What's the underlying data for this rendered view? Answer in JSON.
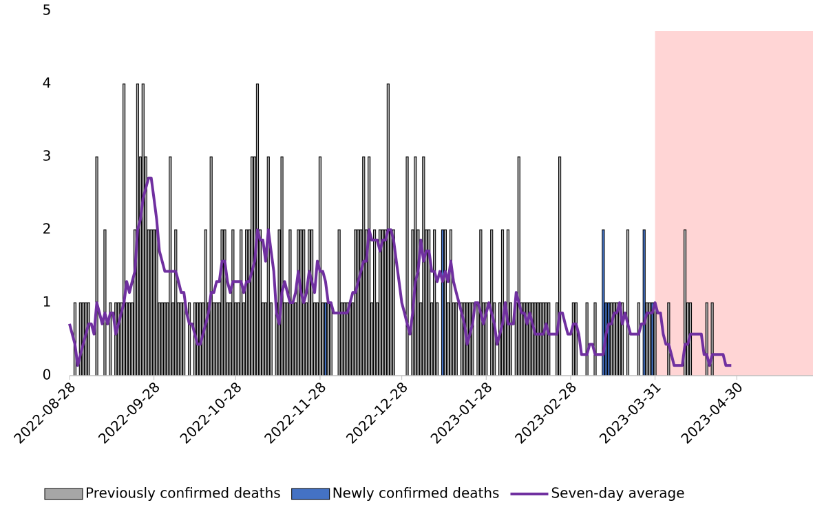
{
  "chart_data": {
    "type": "bar-line",
    "x": [
      "2022-08-28",
      "2022-08-29",
      "2022-08-30",
      "2022-08-31",
      "2022-09-01",
      "2022-09-02",
      "2022-09-03",
      "2022-09-04",
      "2022-09-05",
      "2022-09-06",
      "2022-09-07",
      "2022-09-08",
      "2022-09-09",
      "2022-09-10",
      "2022-09-11",
      "2022-09-12",
      "2022-09-13",
      "2022-09-14",
      "2022-09-15",
      "2022-09-16",
      "2022-09-17",
      "2022-09-18",
      "2022-09-19",
      "2022-09-20",
      "2022-09-21",
      "2022-09-22",
      "2022-09-23",
      "2022-09-24",
      "2022-09-25",
      "2022-09-26",
      "2022-09-27",
      "2022-09-28",
      "2022-09-29",
      "2022-09-30",
      "2022-10-01",
      "2022-10-02",
      "2022-10-03",
      "2022-10-04",
      "2022-10-05",
      "2022-10-06",
      "2022-10-07",
      "2022-10-08",
      "2022-10-09",
      "2022-10-10",
      "2022-10-11",
      "2022-10-12",
      "2022-10-13",
      "2022-10-14",
      "2022-10-15",
      "2022-10-16",
      "2022-10-17",
      "2022-10-18",
      "2022-10-19",
      "2022-10-20",
      "2022-10-21",
      "2022-10-22",
      "2022-10-23",
      "2022-10-24",
      "2022-10-25",
      "2022-10-26",
      "2022-10-27",
      "2022-10-28",
      "2022-10-29",
      "2022-10-30",
      "2022-10-31",
      "2022-11-01",
      "2022-11-02",
      "2022-11-03",
      "2022-11-04",
      "2022-11-05",
      "2022-11-06",
      "2022-11-07",
      "2022-11-08",
      "2022-11-09",
      "2022-11-10",
      "2022-11-11",
      "2022-11-12",
      "2022-11-13",
      "2022-11-14",
      "2022-11-15",
      "2022-11-16",
      "2022-11-17",
      "2022-11-18",
      "2022-11-19",
      "2022-11-20",
      "2022-11-21",
      "2022-11-22",
      "2022-11-23",
      "2022-11-24",
      "2022-11-25",
      "2022-11-26",
      "2022-11-27",
      "2022-11-28",
      "2022-11-29",
      "2022-11-30",
      "2022-12-01",
      "2022-12-02",
      "2022-12-03",
      "2022-12-04",
      "2022-12-05",
      "2022-12-06",
      "2022-12-07",
      "2022-12-08",
      "2022-12-09",
      "2022-12-10",
      "2022-12-11",
      "2022-12-12",
      "2022-12-13",
      "2022-12-14",
      "2022-12-15",
      "2022-12-16",
      "2022-12-17",
      "2022-12-18",
      "2022-12-19",
      "2022-12-20",
      "2022-12-21",
      "2022-12-22",
      "2022-12-23",
      "2022-12-24",
      "2022-12-25",
      "2022-12-26",
      "2022-12-27",
      "2022-12-28",
      "2022-12-29",
      "2022-12-30",
      "2022-12-31",
      "2023-01-01",
      "2023-01-02",
      "2023-01-03",
      "2023-01-04",
      "2023-01-05",
      "2023-01-06",
      "2023-01-07",
      "2023-01-08",
      "2023-01-09",
      "2023-01-10",
      "2023-01-11",
      "2023-01-12",
      "2023-01-13",
      "2023-01-14",
      "2023-01-15",
      "2023-01-16",
      "2023-01-17",
      "2023-01-18",
      "2023-01-19",
      "2023-01-20",
      "2023-01-21",
      "2023-01-22",
      "2023-01-23",
      "2023-01-24",
      "2023-01-25",
      "2023-01-26",
      "2023-01-27",
      "2023-01-28",
      "2023-01-29",
      "2023-01-30",
      "2023-01-31",
      "2023-02-01",
      "2023-02-02",
      "2023-02-03",
      "2023-02-04",
      "2023-02-05",
      "2023-02-06",
      "2023-02-07",
      "2023-02-08",
      "2023-02-09",
      "2023-02-10",
      "2023-02-11",
      "2023-02-12",
      "2023-02-13",
      "2023-02-14",
      "2023-02-15",
      "2023-02-16",
      "2023-02-17",
      "2023-02-18",
      "2023-02-19",
      "2023-02-20",
      "2023-02-21",
      "2023-02-22",
      "2023-02-23",
      "2023-02-24",
      "2023-02-25",
      "2023-02-26",
      "2023-02-27",
      "2023-02-28",
      "2023-03-01",
      "2023-03-02",
      "2023-03-03",
      "2023-03-04",
      "2023-03-05",
      "2023-03-06",
      "2023-03-07",
      "2023-03-08",
      "2023-03-09",
      "2023-03-10",
      "2023-03-11",
      "2023-03-12",
      "2023-03-13",
      "2023-03-14",
      "2023-03-15",
      "2023-03-16",
      "2023-03-17",
      "2023-03-18",
      "2023-03-19",
      "2023-03-20",
      "2023-03-21",
      "2023-03-22",
      "2023-03-23",
      "2023-03-24",
      "2023-03-25",
      "2023-03-26",
      "2023-03-27",
      "2023-03-28",
      "2023-03-29",
      "2023-03-30",
      "2023-03-31",
      "2023-04-01",
      "2023-04-02",
      "2023-04-03",
      "2023-04-04",
      "2023-04-05",
      "2023-04-06",
      "2023-04-07",
      "2023-04-08",
      "2023-04-09",
      "2023-04-10",
      "2023-04-11",
      "2023-04-12",
      "2023-04-13",
      "2023-04-14",
      "2023-04-15",
      "2023-04-16",
      "2023-04-17",
      "2023-04-18",
      "2023-04-19",
      "2023-04-20",
      "2023-04-21",
      "2023-04-22",
      "2023-04-23",
      "2023-04-24",
      "2023-04-25",
      "2023-04-26",
      "2023-04-27",
      "2023-04-28"
    ],
    "series": [
      {
        "name": "Previously confirmed deaths",
        "kind": "bar",
        "color": "#a6a6a6",
        "values": [
          0,
          0,
          1,
          0,
          1,
          1,
          1,
          1,
          0,
          0,
          3,
          0,
          0,
          2,
          0,
          1,
          0,
          1,
          1,
          1,
          4,
          1,
          1,
          1,
          2,
          4,
          3,
          4,
          3,
          2,
          2,
          2,
          2,
          1,
          1,
          1,
          1,
          3,
          1,
          2,
          1,
          1,
          1,
          0,
          1,
          0,
          1,
          1,
          1,
          1,
          2,
          1,
          3,
          1,
          1,
          1,
          2,
          2,
          1,
          1,
          2,
          1,
          1,
          2,
          1,
          2,
          2,
          3,
          3,
          4,
          2,
          1,
          1,
          3,
          1,
          0,
          1,
          2,
          3,
          1,
          1,
          2,
          1,
          1,
          2,
          2,
          2,
          1,
          2,
          2,
          1,
          1,
          3,
          1,
          0,
          1,
          1,
          0,
          0,
          2,
          1,
          1,
          1,
          1,
          1,
          2,
          2,
          2,
          3,
          2,
          3,
          1,
          2,
          1,
          2,
          2,
          2,
          4,
          2,
          2,
          0,
          0,
          0,
          0,
          3,
          0,
          2,
          3,
          2,
          1,
          3,
          2,
          2,
          1,
          2,
          1,
          0,
          0,
          2,
          1,
          2,
          1,
          1,
          0,
          1,
          1,
          1,
          1,
          1,
          0,
          1,
          2,
          1,
          1,
          0,
          2,
          1,
          0,
          1,
          2,
          1,
          2,
          1,
          0,
          1,
          3,
          1,
          1,
          1,
          1,
          1,
          1,
          1,
          1,
          1,
          1,
          1,
          0,
          0,
          1,
          3,
          0,
          0,
          0,
          0,
          1,
          1,
          0,
          0,
          0,
          1,
          0,
          0,
          1,
          0,
          0,
          0,
          0,
          0,
          1,
          1,
          1,
          1,
          1,
          0,
          2,
          0,
          0,
          0,
          1,
          0,
          0,
          1,
          1,
          0,
          1,
          0,
          0,
          0,
          0,
          1,
          0,
          0,
          0,
          0,
          0,
          2,
          1,
          1,
          0,
          0,
          0,
          0,
          0,
          1,
          0,
          1,
          0,
          0,
          0,
          0,
          0,
          0,
          0
        ]
      },
      {
        "name": "Newly confirmed deaths",
        "kind": "bar",
        "color": "#4472c4",
        "values": [
          0,
          0,
          0,
          0,
          0,
          0,
          0,
          0,
          0,
          0,
          0,
          0,
          0,
          0,
          0,
          0,
          0,
          0,
          0,
          0,
          0,
          0,
          0,
          0,
          0,
          0,
          0,
          0,
          0,
          0,
          0,
          0,
          0,
          0,
          0,
          0,
          0,
          0,
          0,
          0,
          0,
          0,
          0,
          0,
          0,
          0,
          0,
          0,
          0,
          0,
          0,
          0,
          0,
          0,
          0,
          0,
          0,
          0,
          0,
          0,
          0,
          0,
          0,
          0,
          0,
          0,
          0,
          0,
          0,
          0,
          0,
          0,
          0,
          0,
          0,
          0,
          0,
          0,
          0,
          0,
          0,
          0,
          0,
          0,
          0,
          0,
          0,
          0,
          0,
          0,
          0,
          0,
          0,
          0,
          1,
          0,
          0,
          0,
          0,
          0,
          0,
          0,
          0,
          0,
          0,
          0,
          0,
          0,
          0,
          0,
          0,
          0,
          0,
          0,
          0,
          0,
          0,
          0,
          0,
          0,
          0,
          0,
          0,
          0,
          0,
          0,
          0,
          0,
          0,
          0,
          0,
          0,
          0,
          0,
          0,
          0,
          0,
          2,
          0,
          0,
          0,
          0,
          0,
          0,
          0,
          0,
          0,
          0,
          0,
          0,
          0,
          0,
          0,
          0,
          0,
          0,
          0,
          0,
          0,
          0,
          0,
          0,
          0,
          0,
          0,
          0,
          0,
          0,
          0,
          0,
          0,
          0,
          0,
          0,
          0,
          0,
          0,
          0,
          0,
          0,
          0,
          0,
          0,
          0,
          0,
          0,
          0,
          0,
          0,
          0,
          0,
          0,
          0,
          0,
          0,
          0,
          2,
          1,
          1,
          0,
          0,
          0,
          0,
          0,
          0,
          0,
          0,
          0,
          0,
          0,
          0,
          2,
          0,
          0,
          1,
          0,
          0,
          0,
          0,
          0,
          0,
          0,
          0,
          0,
          0,
          0,
          0,
          0,
          0,
          0,
          0,
          0,
          0,
          0,
          0,
          0,
          0,
          0,
          0,
          0,
          0,
          0,
          0,
          0
        ]
      },
      {
        "name": "Seven-day average",
        "kind": "line",
        "color": "#7030a0",
        "values": [
          0.71,
          0.57,
          0.43,
          0.14,
          0.29,
          0.43,
          0.57,
          0.71,
          0.71,
          0.57,
          1.0,
          0.86,
          0.71,
          0.86,
          0.71,
          0.86,
          0.86,
          0.57,
          0.71,
          0.86,
          1.0,
          1.29,
          1.14,
          1.29,
          1.43,
          2.0,
          2.14,
          2.43,
          2.57,
          2.71,
          2.71,
          2.43,
          2.14,
          1.71,
          1.57,
          1.43,
          1.43,
          1.43,
          1.43,
          1.43,
          1.29,
          1.14,
          1.14,
          0.86,
          0.71,
          0.71,
          0.57,
          0.43,
          0.43,
          0.57,
          0.71,
          0.86,
          1.14,
          1.14,
          1.29,
          1.29,
          1.57,
          1.57,
          1.29,
          1.14,
          1.29,
          1.29,
          1.29,
          1.29,
          1.14,
          1.29,
          1.29,
          1.43,
          1.57,
          2.0,
          1.86,
          1.86,
          1.57,
          2.0,
          1.71,
          1.43,
          0.86,
          0.71,
          1.14,
          1.29,
          1.14,
          1.0,
          1.0,
          1.14,
          1.43,
          1.14,
          1.0,
          1.14,
          1.43,
          1.29,
          1.14,
          1.57,
          1.43,
          1.43,
          1.29,
          1.0,
          1.0,
          0.86,
          0.86,
          0.86,
          0.86,
          0.86,
          0.86,
          1.0,
          1.14,
          1.14,
          1.29,
          1.43,
          1.57,
          1.57,
          2.0,
          1.86,
          1.86,
          1.86,
          1.71,
          1.86,
          1.86,
          2.0,
          2.0,
          1.86,
          1.57,
          1.29,
          1.0,
          0.86,
          0.71,
          0.57,
          0.86,
          1.29,
          1.43,
          1.86,
          1.57,
          1.71,
          1.71,
          1.43,
          1.43,
          1.29,
          1.43,
          1.29,
          1.43,
          1.29,
          1.57,
          1.29,
          1.14,
          1.0,
          0.86,
          0.71,
          0.43,
          0.57,
          0.71,
          1.0,
          1.0,
          0.86,
          0.71,
          0.86,
          1.0,
          0.86,
          0.71,
          0.43,
          0.57,
          0.71,
          1.0,
          0.71,
          0.71,
          0.71,
          1.14,
          1.0,
          0.86,
          0.86,
          0.71,
          0.86,
          0.71,
          0.57,
          0.57,
          0.57,
          0.57,
          0.71,
          0.57,
          0.57,
          0.57,
          0.57,
          0.86,
          0.86,
          0.71,
          0.57,
          0.57,
          0.71,
          0.71,
          0.57,
          0.29,
          0.29,
          0.29,
          0.43,
          0.43,
          0.29,
          0.29,
          0.29,
          0.29,
          0.57,
          0.71,
          0.71,
          0.86,
          0.86,
          1.0,
          0.71,
          0.86,
          0.71,
          0.57,
          0.57,
          0.57,
          0.57,
          0.71,
          0.71,
          0.86,
          0.86,
          0.86,
          1.0,
          0.86,
          0.86,
          0.57,
          0.43,
          0.43,
          0.29,
          0.14,
          0.14,
          0.14,
          0.14,
          0.43,
          0.43,
          0.57,
          0.57,
          0.57,
          0.57,
          0.57,
          0.29,
          0.29,
          0.14,
          0.29,
          0.29,
          0.29,
          0.29,
          0.29,
          0.14,
          0.14,
          0.14
        ]
      }
    ],
    "xlim": [
      "2022-08-28",
      "2023-05-28"
    ],
    "xticks": [
      "2022-08-28",
      "2022-09-28",
      "2022-10-28",
      "2022-11-28",
      "2022-12-28",
      "2023-01-28",
      "2023-02-28",
      "2023-03-31",
      "2023-04-30"
    ],
    "ylim": [
      0,
      5
    ],
    "yticks": [
      0,
      1,
      2,
      3,
      4,
      5
    ],
    "shade": {
      "from": "2023-03-31",
      "to": "2023-05-28",
      "color": "#ffd5d5"
    },
    "legend": "bottom"
  }
}
